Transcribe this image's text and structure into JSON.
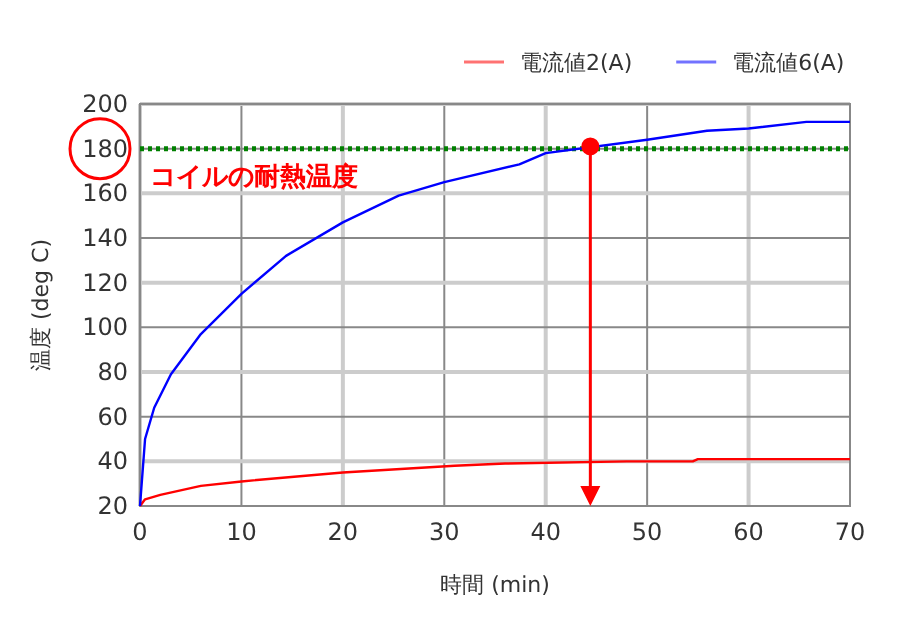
{
  "chart_data": {
    "type": "line",
    "xlabel": "時間 (min)",
    "ylabel": "温度 (deg C)",
    "xlim": [
      0,
      70
    ],
    "xticks": [
      0,
      10,
      20,
      30,
      40,
      50,
      60,
      70
    ],
    "ylim": [
      20,
      200
    ],
    "yticks": [
      20,
      40,
      60,
      80,
      100,
      120,
      140,
      160,
      180,
      200
    ],
    "grid": true,
    "legend": "top right",
    "line_style": "solid",
    "series": [
      {
        "name": "電流値2(A)",
        "color": "#ff0000",
        "x": [
          0,
          0.5,
          2,
          6,
          10,
          20,
          31,
          36,
          48,
          54.5,
          55,
          70
        ],
        "values": [
          20,
          23,
          25,
          29,
          31,
          35,
          38,
          39,
          40,
          40,
          41,
          41
        ]
      },
      {
        "name": "電流値6(A)",
        "color": "#0000ff",
        "x": [
          0,
          0.5,
          1.4,
          3.05,
          6,
          10,
          14.4,
          20,
          25.5,
          30,
          37.4,
          40,
          50,
          55.9,
          60,
          65.7,
          70
        ],
        "values": [
          20,
          50,
          64,
          79,
          97,
          115,
          132,
          147,
          159,
          165,
          173,
          178,
          184,
          188,
          189,
          192,
          192
        ]
      },
      {
        "type": "scatter",
        "marker": "circle",
        "color": "#ff0000",
        "x": [
          44.4
        ],
        "values": [
          181
        ]
      }
    ],
    "ref_lines": [
      {
        "axis": "y",
        "value": 180,
        "label": "コイルの耐熱温度",
        "color": "#008000",
        "line_style": "dotted"
      }
    ]
  }
}
